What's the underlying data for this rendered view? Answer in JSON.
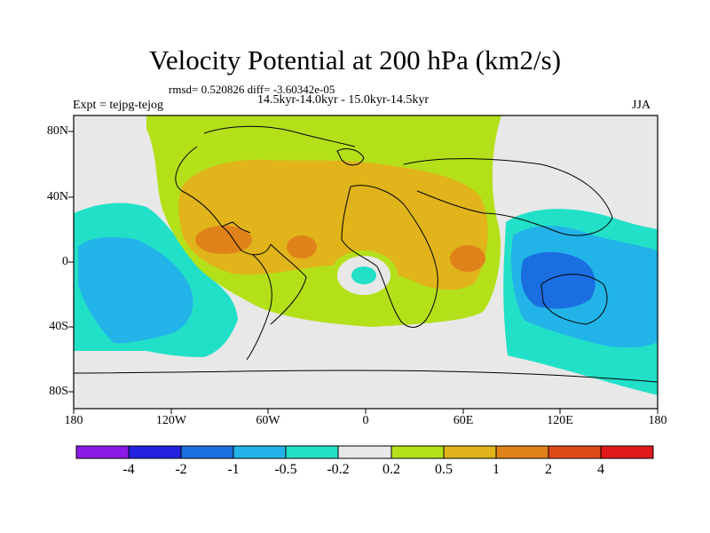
{
  "title": "Velocity Potential at 200 hPa (km2/s)",
  "stats": "rmsd= 0.520826 diff= -3.60342e-05",
  "period": "14.5kyr-14.0kyr - 15.0kyr-14.5kyr",
  "experiment": "Expt = tejpg-tejog",
  "season": "JJA",
  "axes": {
    "x_ticks": [
      "180",
      "120W",
      "60W",
      "0",
      "60E",
      "120E",
      "180"
    ],
    "y_ticks": [
      "80N",
      "40N",
      "0",
      "40S",
      "80S"
    ]
  },
  "colorbar": {
    "labels": [
      "-4",
      "-2",
      "-1",
      "-0.5",
      "-0.2",
      "0.2",
      "0.5",
      "1",
      "2",
      "4"
    ],
    "colors": [
      "#8b1ae8",
      "#2222e0",
      "#1a6ee0",
      "#22b4e8",
      "#22e0c8",
      "#e8e8e8",
      "#b4e01a",
      "#e0b41a",
      "#e0821a",
      "#e04a1a",
      "#e01a1a"
    ]
  },
  "colors": {
    "grey_band": "#e8e8e8",
    "green_band": "#b4e01a",
    "orange_band": "#e0b41a",
    "dark_orange_band": "#e0821a",
    "cyan_band": "#22e0c8",
    "light_blue_band": "#22b4e8",
    "blue_band": "#1a6ee0"
  }
}
